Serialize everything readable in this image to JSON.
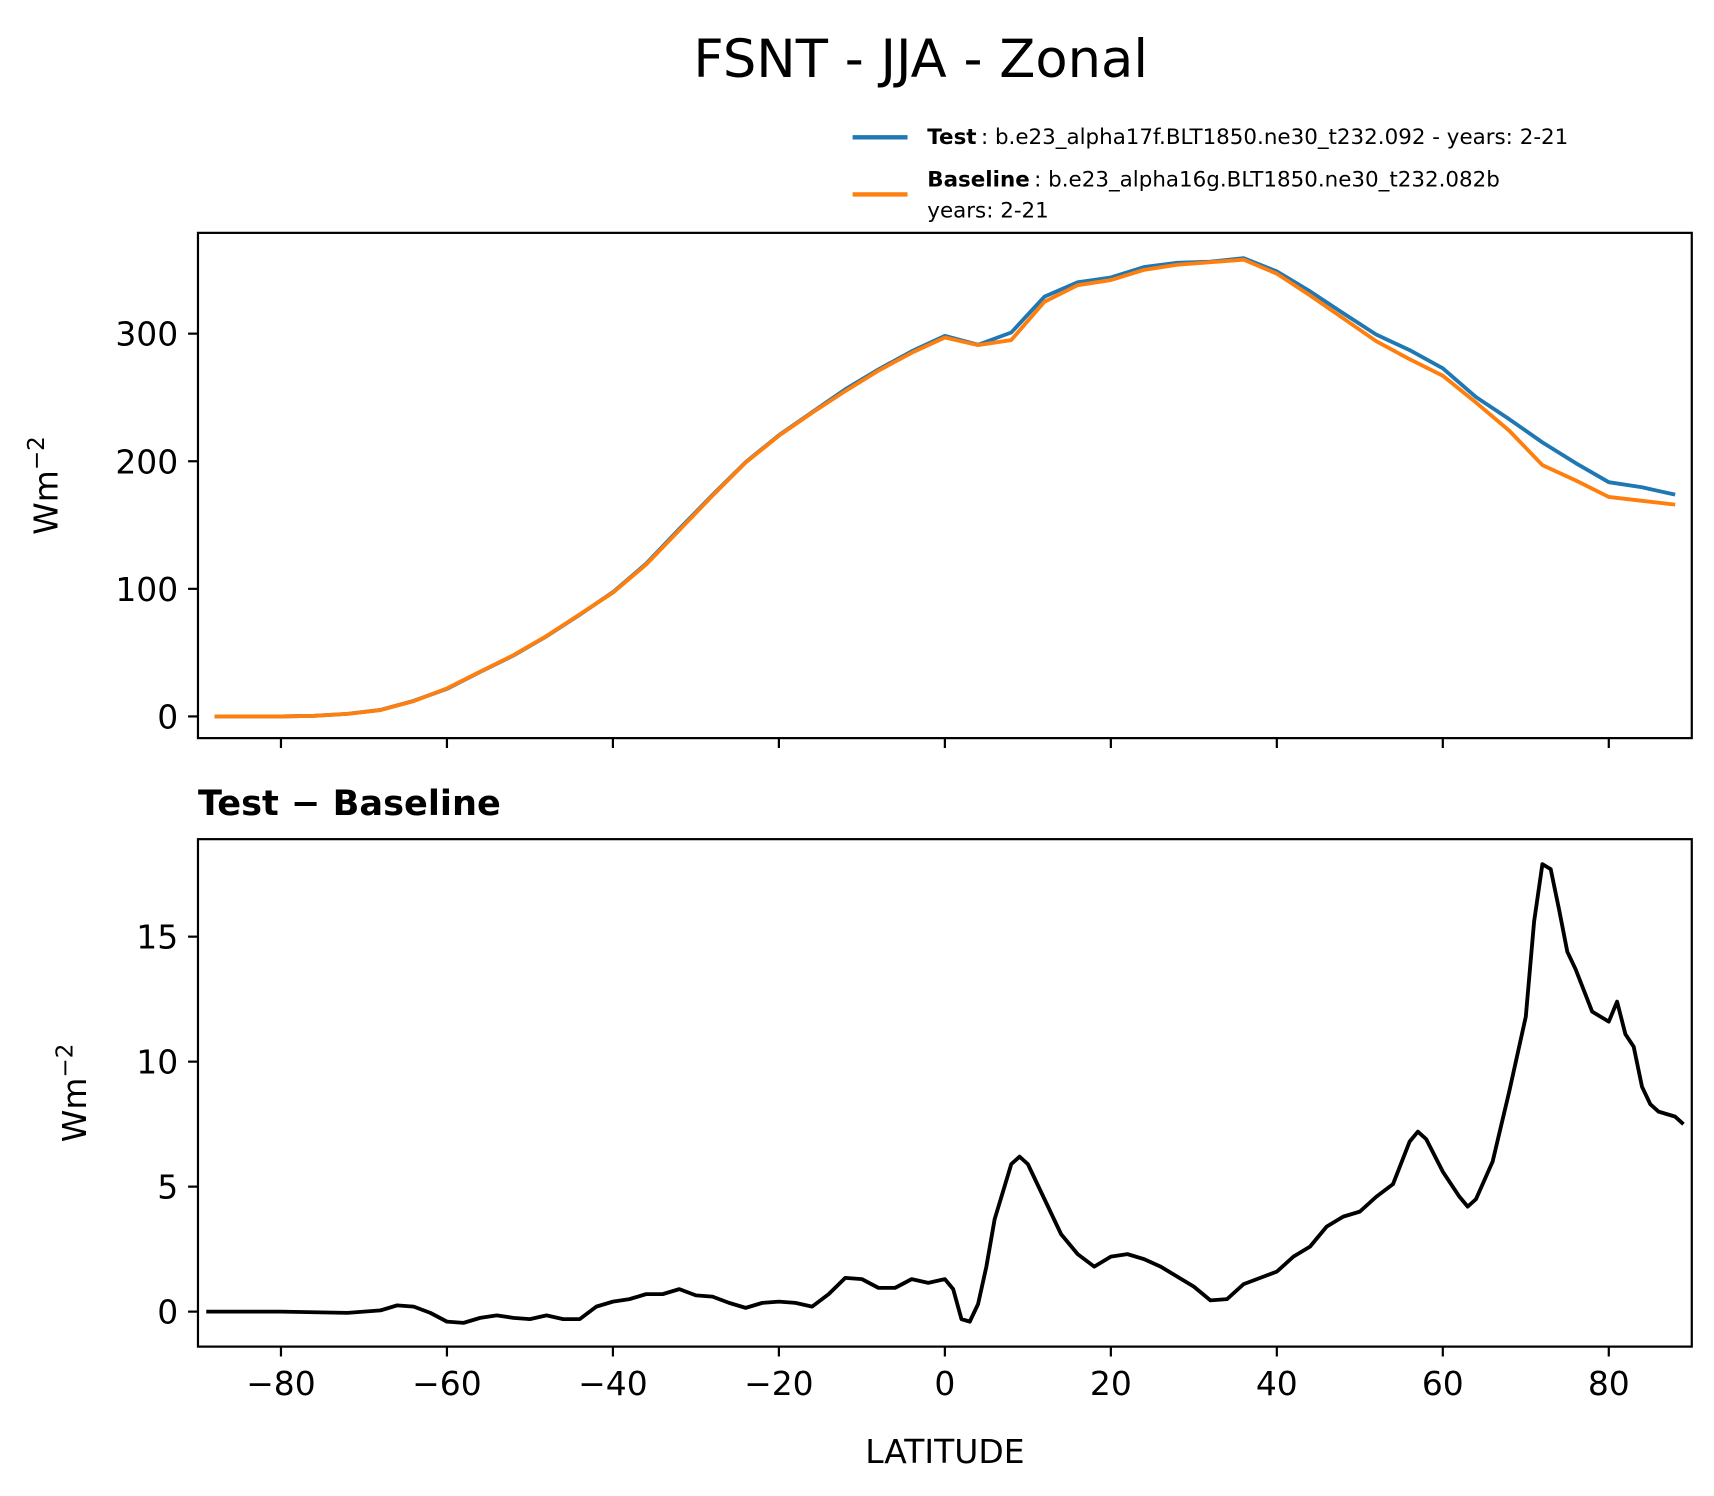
{
  "chart_data": [
    {
      "type": "line",
      "title": "FSNT - JJA - Zonal",
      "ylabel": {
        "text": "Wm",
        "superscript": "−2"
      },
      "x": [
        -88,
        -84,
        -80,
        -76,
        -72,
        -68,
        -64,
        -60,
        -56,
        -52,
        -48,
        -44,
        -40,
        -36,
        -32,
        -28,
        -24,
        -20,
        -16,
        -12,
        -8,
        -4,
        0,
        4,
        8,
        12,
        16,
        20,
        24,
        28,
        32,
        36,
        40,
        44,
        48,
        52,
        56,
        60,
        64,
        68,
        72,
        76,
        80,
        84,
        88
      ],
      "series": [
        {
          "name": "Test",
          "description": [
            ": b.e23_alpha17f.BLT1850.ne30_t232.092 - years: 2-21"
          ],
          "color": "#1f77b4",
          "values": [
            0,
            0,
            0,
            0.5,
            2,
            5.1,
            12.2,
            21.6,
            34.9,
            47.7,
            62.8,
            79.7,
            97.4,
            119.7,
            146.9,
            173.6,
            199.3,
            220.4,
            238.4,
            256.4,
            272,
            286.2,
            298.3,
            291.3,
            300.9,
            329,
            340.3,
            344,
            352.2,
            355.5,
            356.4,
            359.2,
            348.8,
            333.2,
            316,
            299.2,
            287.1,
            272.8,
            250.3,
            233,
            214.8,
            198.6,
            183.6,
            179.6,
            173.8
          ]
        },
        {
          "name": "Baseline",
          "description": [
            ": b.e23_alpha16g.BLT1850.ne30_t232.082b",
            "years: 2-21"
          ],
          "color": "#ff7f0e",
          "values": [
            0,
            0,
            0,
            0.5,
            2,
            5,
            12,
            22,
            35,
            48,
            63,
            80,
            97,
            119,
            146,
            173,
            199,
            220,
            238,
            255,
            271,
            285,
            297,
            291,
            295,
            325,
            338,
            342,
            350,
            354,
            356,
            358,
            347,
            330,
            312,
            294,
            280,
            267,
            246,
            224,
            197,
            185,
            172,
            169,
            166
          ]
        }
      ],
      "xlim": [
        -90,
        90
      ],
      "ylim": [
        -17,
        379
      ],
      "xticks": [
        -80,
        -60,
        -40,
        -20,
        0,
        20,
        40,
        60,
        80
      ],
      "yticks": [
        0,
        100,
        200,
        300
      ],
      "xtick_labels": false,
      "legend": "top-right-outside",
      "grid": false
    },
    {
      "type": "line",
      "title": "Test − Baseline",
      "xlabel": "LATITUDE",
      "ylabel": {
        "text": "Wm",
        "superscript": "−2"
      },
      "x": [
        -89,
        -80,
        -72,
        -68,
        -66,
        -64,
        -62,
        -60,
        -58,
        -56,
        -54,
        -52,
        -50,
        -48,
        -46,
        -44,
        -42,
        -40,
        -38,
        -36,
        -34,
        -32,
        -30,
        -28,
        -26,
        -24,
        -22,
        -20,
        -18,
        -16,
        -14,
        -12,
        -10,
        -8,
        -6,
        -4,
        -2,
        0,
        1,
        2,
        3,
        4,
        5,
        6,
        7,
        8,
        9,
        10,
        12,
        14,
        16,
        18,
        20,
        22,
        24,
        26,
        28,
        30,
        32,
        34,
        36,
        38,
        40,
        42,
        44,
        46,
        48,
        50,
        52,
        54,
        56,
        57,
        58,
        60,
        62,
        63,
        64,
        66,
        68,
        70,
        71,
        72,
        73,
        74,
        75,
        76,
        78,
        80,
        81,
        82,
        83,
        84,
        85,
        86,
        88,
        89
      ],
      "series": [
        {
          "color": "#000000",
          "values": [
            0,
            0,
            -0.05,
            0.05,
            0.25,
            0.2,
            -0.05,
            -0.4,
            -0.45,
            -0.25,
            -0.15,
            -0.25,
            -0.3,
            -0.15,
            -0.3,
            -0.3,
            0.2,
            0.4,
            0.5,
            0.7,
            0.7,
            0.9,
            0.65,
            0.6,
            0.35,
            0.15,
            0.35,
            0.4,
            0.35,
            0.2,
            0.7,
            1.35,
            1.3,
            0.95,
            0.95,
            1.3,
            1.15,
            1.3,
            0.9,
            -0.3,
            -0.4,
            0.3,
            1.8,
            3.7,
            4.8,
            5.9,
            6.2,
            5.9,
            4.5,
            3.1,
            2.3,
            1.8,
            2.2,
            2.3,
            2.1,
            1.8,
            1.4,
            1.0,
            0.45,
            0.5,
            1.1,
            1.35,
            1.6,
            2.2,
            2.6,
            3.4,
            3.8,
            4.0,
            4.6,
            5.1,
            6.8,
            7.2,
            6.9,
            5.6,
            4.6,
            4.2,
            4.5,
            6.0,
            8.8,
            11.8,
            15.6,
            17.9,
            17.7,
            16.1,
            14.4,
            13.7,
            12.0,
            11.6,
            12.4,
            11.1,
            10.6,
            9.0,
            8.3,
            8.0,
            7.8,
            7.5
          ]
        }
      ],
      "xlim": [
        -90,
        90
      ],
      "ylim": [
        -1.4,
        18.9
      ],
      "xticks": [
        {
          "value": -80,
          "label": "−80"
        },
        {
          "value": -60,
          "label": "−60"
        },
        {
          "value": -40,
          "label": "−40"
        },
        {
          "value": -20,
          "label": "−20"
        },
        0,
        20,
        40,
        60,
        80
      ],
      "yticks": [
        0,
        5,
        10,
        15
      ],
      "xtick_labels": true,
      "grid": false
    }
  ]
}
